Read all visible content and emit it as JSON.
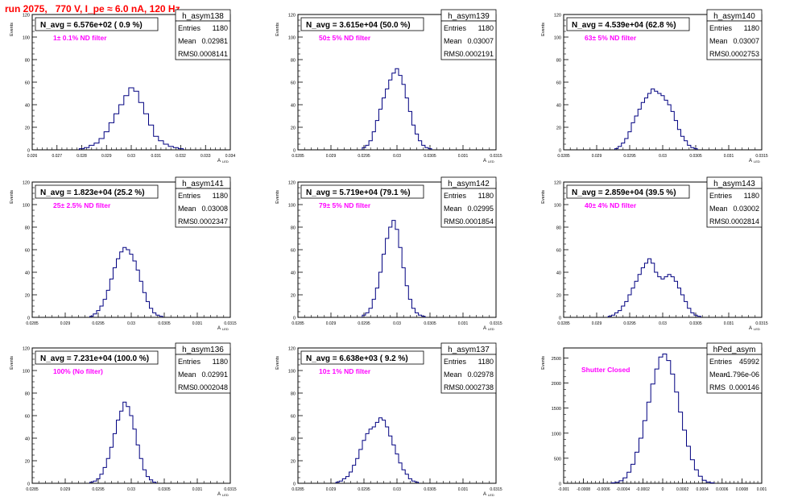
{
  "header": {
    "run_title": "run 2075,   770 V, I_pe ≈ 6.0 nA, 120 Hz"
  },
  "colors": {
    "hist_line": "#000080",
    "annotation": "#ff00ff",
    "title": "#ff0000",
    "axes": "#000000"
  },
  "chart_data": [
    {
      "type": "histogram",
      "name": "h_asym138",
      "navg": "N_avg = 6.576e+02 ( 0.9 %)",
      "filter": "1± 0.1% ND filter",
      "stats": {
        "Entries": "1180",
        "Mean": "0.02981",
        "RMS": "0.0008141"
      },
      "xlim": [
        0.026,
        0.034
      ],
      "ylim": [
        0,
        120
      ],
      "ylabel": "Events",
      "xlabel": "A_LED",
      "xticks": [
        "0.026",
        "0.027",
        "0.028",
        "0.029",
        "0.03",
        "0.031",
        "0.032",
        "0.033",
        "0.034"
      ],
      "yticks": [
        "0",
        "20",
        "40",
        "60",
        "80",
        "100",
        "120"
      ],
      "bins": [
        [
          0.028,
          1
        ],
        [
          0.0282,
          2
        ],
        [
          0.0284,
          4
        ],
        [
          0.0286,
          6
        ],
        [
          0.0288,
          10
        ],
        [
          0.029,
          16
        ],
        [
          0.0292,
          24
        ],
        [
          0.0294,
          32
        ],
        [
          0.0296,
          40
        ],
        [
          0.0298,
          48
        ],
        [
          0.03,
          55
        ],
        [
          0.0302,
          52
        ],
        [
          0.0304,
          42
        ],
        [
          0.0306,
          32
        ],
        [
          0.0308,
          22
        ],
        [
          0.031,
          12
        ],
        [
          0.0312,
          8
        ],
        [
          0.0314,
          5
        ],
        [
          0.0316,
          3
        ],
        [
          0.0318,
          2
        ],
        [
          0.032,
          1
        ]
      ]
    },
    {
      "type": "histogram",
      "name": "h_asym139",
      "navg": "N_avg = 3.615e+04 (50.0 %)",
      "filter": "50± 5% ND filter",
      "stats": {
        "Entries": "1180",
        "Mean": "0.03007",
        "RMS": "0.0002191"
      },
      "xlim": [
        0.0285,
        0.0315
      ],
      "ylim": [
        0,
        120
      ],
      "ylabel": "Events",
      "xlabel": "A_LED",
      "xticks": [
        "0.0285",
        "0.029",
        "0.0295",
        "0.03",
        "0.0305",
        "0.031",
        "0.0315"
      ],
      "yticks": [
        "0",
        "20",
        "40",
        "60",
        "80",
        "100",
        "120"
      ],
      "bins": [
        [
          0.0295,
          2
        ],
        [
          0.02955,
          4
        ],
        [
          0.0296,
          8
        ],
        [
          0.02965,
          16
        ],
        [
          0.0297,
          26
        ],
        [
          0.02975,
          36
        ],
        [
          0.0298,
          46
        ],
        [
          0.02985,
          54
        ],
        [
          0.0299,
          62
        ],
        [
          0.02995,
          68
        ],
        [
          0.03,
          72
        ],
        [
          0.03005,
          66
        ],
        [
          0.0301,
          58
        ],
        [
          0.03015,
          46
        ],
        [
          0.0302,
          34
        ],
        [
          0.03025,
          22
        ],
        [
          0.0303,
          14
        ],
        [
          0.03035,
          8
        ],
        [
          0.0304,
          4
        ],
        [
          0.03045,
          2
        ],
        [
          0.0305,
          1
        ]
      ]
    },
    {
      "type": "histogram",
      "name": "h_asym140",
      "navg": "N_avg = 4.539e+04 (62.8 %)",
      "filter": "63± 5% ND filter",
      "stats": {
        "Entries": "1180",
        "Mean": "0.03007",
        "RMS": "0.0002753"
      },
      "xlim": [
        0.0285,
        0.0315
      ],
      "ylim": [
        0,
        120
      ],
      "ylabel": "Events",
      "xlabel": "A_LED",
      "xticks": [
        "0.0285",
        "0.029",
        "0.0295",
        "0.03",
        "0.0305",
        "0.031",
        "0.0315"
      ],
      "yticks": [
        "0",
        "20",
        "40",
        "60",
        "80",
        "100",
        "120"
      ],
      "bins": [
        [
          0.0293,
          1
        ],
        [
          0.02935,
          3
        ],
        [
          0.0294,
          6
        ],
        [
          0.02945,
          10
        ],
        [
          0.0295,
          16
        ],
        [
          0.02955,
          24
        ],
        [
          0.0296,
          30
        ],
        [
          0.02965,
          36
        ],
        [
          0.0297,
          42
        ],
        [
          0.02975,
          46
        ],
        [
          0.0298,
          50
        ],
        [
          0.02985,
          54
        ],
        [
          0.0299,
          52
        ],
        [
          0.02995,
          50
        ],
        [
          0.03,
          48
        ],
        [
          0.03005,
          44
        ],
        [
          0.0301,
          40
        ],
        [
          0.03015,
          34
        ],
        [
          0.0302,
          26
        ],
        [
          0.03025,
          18
        ],
        [
          0.0303,
          12
        ],
        [
          0.03035,
          8
        ],
        [
          0.0304,
          4
        ],
        [
          0.03045,
          2
        ],
        [
          0.0305,
          1
        ]
      ]
    },
    {
      "type": "histogram",
      "name": "h_asym141",
      "navg": "N_avg = 1.823e+04 (25.2 %)",
      "filter": "25± 2.5% ND filter",
      "stats": {
        "Entries": "1180",
        "Mean": "0.03008",
        "RMS": "0.0002347"
      },
      "xlim": [
        0.0285,
        0.0315
      ],
      "ylim": [
        0,
        120
      ],
      "ylabel": "Events",
      "xlabel": "A_LED",
      "xticks": [
        "0.0285",
        "0.029",
        "0.0295",
        "0.03",
        "0.0305",
        "0.031",
        "0.0315"
      ],
      "yticks": [
        "0",
        "20",
        "40",
        "60",
        "80",
        "100",
        "120"
      ],
      "bins": [
        [
          0.0294,
          1
        ],
        [
          0.02945,
          3
        ],
        [
          0.0295,
          6
        ],
        [
          0.02955,
          10
        ],
        [
          0.0296,
          16
        ],
        [
          0.02965,
          24
        ],
        [
          0.0297,
          34
        ],
        [
          0.02975,
          44
        ],
        [
          0.0298,
          52
        ],
        [
          0.02985,
          58
        ],
        [
          0.0299,
          62
        ],
        [
          0.02995,
          60
        ],
        [
          0.03,
          56
        ],
        [
          0.03005,
          50
        ],
        [
          0.0301,
          42
        ],
        [
          0.03015,
          32
        ],
        [
          0.0302,
          22
        ],
        [
          0.03025,
          14
        ],
        [
          0.0303,
          8
        ],
        [
          0.03035,
          4
        ],
        [
          0.0304,
          2
        ],
        [
          0.03045,
          1
        ]
      ]
    },
    {
      "type": "histogram",
      "name": "h_asym142",
      "navg": "N_avg = 5.719e+04 (79.1 %)",
      "filter": "79± 5% ND filter",
      "stats": {
        "Entries": "1180",
        "Mean": "0.02995",
        "RMS": "0.0001854"
      },
      "xlim": [
        0.0285,
        0.0315
      ],
      "ylim": [
        0,
        120
      ],
      "ylabel": "Events",
      "xlabel": "A_LED",
      "xticks": [
        "0.0285",
        "0.029",
        "0.0295",
        "0.03",
        "0.0305",
        "0.031",
        "0.0315"
      ],
      "yticks": [
        "0",
        "20",
        "40",
        "60",
        "80",
        "100",
        "120"
      ],
      "bins": [
        [
          0.0295,
          2
        ],
        [
          0.02955,
          4
        ],
        [
          0.0296,
          8
        ],
        [
          0.02965,
          16
        ],
        [
          0.0297,
          26
        ],
        [
          0.02975,
          40
        ],
        [
          0.0298,
          56
        ],
        [
          0.02985,
          70
        ],
        [
          0.0299,
          80
        ],
        [
          0.02995,
          86
        ],
        [
          0.03,
          78
        ],
        [
          0.03005,
          62
        ],
        [
          0.0301,
          44
        ],
        [
          0.03015,
          28
        ],
        [
          0.0302,
          16
        ],
        [
          0.03025,
          8
        ],
        [
          0.0303,
          4
        ],
        [
          0.03035,
          2
        ],
        [
          0.0304,
          1
        ]
      ]
    },
    {
      "type": "histogram",
      "name": "h_asym143",
      "navg": "N_avg = 2.859e+04 (39.5 %)",
      "filter": "40± 4% ND filter",
      "stats": {
        "Entries": "1180",
        "Mean": "0.03002",
        "RMS": "0.0002814"
      },
      "xlim": [
        0.0285,
        0.0315
      ],
      "ylim": [
        0,
        120
      ],
      "ylabel": "Events",
      "xlabel": "A_LED",
      "xticks": [
        "0.0285",
        "0.029",
        "0.0295",
        "0.03",
        "0.0305",
        "0.031",
        "0.0315"
      ],
      "yticks": [
        "0",
        "20",
        "40",
        "60",
        "80",
        "100",
        "120"
      ],
      "bins": [
        [
          0.0292,
          1
        ],
        [
          0.02925,
          2
        ],
        [
          0.0293,
          4
        ],
        [
          0.02935,
          6
        ],
        [
          0.0294,
          10
        ],
        [
          0.02945,
          14
        ],
        [
          0.0295,
          20
        ],
        [
          0.02955,
          26
        ],
        [
          0.0296,
          32
        ],
        [
          0.02965,
          38
        ],
        [
          0.0297,
          44
        ],
        [
          0.02975,
          48
        ],
        [
          0.0298,
          52
        ],
        [
          0.02985,
          48
        ],
        [
          0.0299,
          40
        ],
        [
          0.02995,
          36
        ],
        [
          0.03,
          34
        ],
        [
          0.03005,
          36
        ],
        [
          0.0301,
          38
        ],
        [
          0.03015,
          36
        ],
        [
          0.0302,
          32
        ],
        [
          0.03025,
          26
        ],
        [
          0.0303,
          20
        ],
        [
          0.03035,
          14
        ],
        [
          0.0304,
          8
        ],
        [
          0.03045,
          4
        ],
        [
          0.0305,
          2
        ],
        [
          0.03055,
          1
        ]
      ]
    },
    {
      "type": "histogram",
      "name": "h_asym136",
      "navg": "N_avg = 7.231e+04 (100.0 %)",
      "filter": "100% (No filter)",
      "stats": {
        "Entries": "1180",
        "Mean": "0.02991",
        "RMS": "0.0002048"
      },
      "xlim": [
        0.0285,
        0.0315
      ],
      "ylim": [
        0,
        120
      ],
      "ylabel": "Events",
      "xlabel": "A_LED",
      "xticks": [
        "0.0285",
        "0.029",
        "0.0295",
        "0.03",
        "0.0305",
        "0.031",
        "0.0315"
      ],
      "yticks": [
        "0",
        "20",
        "40",
        "60",
        "80",
        "100",
        "120"
      ],
      "bins": [
        [
          0.0294,
          1
        ],
        [
          0.02945,
          2
        ],
        [
          0.0295,
          4
        ],
        [
          0.02955,
          8
        ],
        [
          0.0296,
          14
        ],
        [
          0.02965,
          22
        ],
        [
          0.0297,
          32
        ],
        [
          0.02975,
          44
        ],
        [
          0.0298,
          56
        ],
        [
          0.02985,
          64
        ],
        [
          0.0299,
          72
        ],
        [
          0.02995,
          68
        ],
        [
          0.03,
          60
        ],
        [
          0.03005,
          48
        ],
        [
          0.0301,
          34
        ],
        [
          0.03015,
          22
        ],
        [
          0.0302,
          12
        ],
        [
          0.03025,
          6
        ],
        [
          0.0303,
          3
        ],
        [
          0.03035,
          1
        ]
      ]
    },
    {
      "type": "histogram",
      "name": "h_asym137",
      "navg": "N_avg = 6.638e+03 ( 9.2 %)",
      "filter": "10± 1% ND filter",
      "stats": {
        "Entries": "1180",
        "Mean": "0.02978",
        "RMS": "0.0002738"
      },
      "xlim": [
        0.0285,
        0.0315
      ],
      "ylim": [
        0,
        120
      ],
      "ylabel": "Events",
      "xlabel": "A_LED",
      "xticks": [
        "0.0285",
        "0.029",
        "0.0295",
        "0.03",
        "0.0305",
        "0.031",
        "0.0315"
      ],
      "yticks": [
        "0",
        "20",
        "40",
        "60",
        "80",
        "100",
        "120"
      ],
      "bins": [
        [
          0.0291,
          1
        ],
        [
          0.02915,
          2
        ],
        [
          0.0292,
          4
        ],
        [
          0.02925,
          6
        ],
        [
          0.0293,
          10
        ],
        [
          0.02935,
          16
        ],
        [
          0.0294,
          22
        ],
        [
          0.02945,
          30
        ],
        [
          0.0295,
          38
        ],
        [
          0.02955,
          44
        ],
        [
          0.0296,
          48
        ],
        [
          0.02965,
          50
        ],
        [
          0.0297,
          54
        ],
        [
          0.02975,
          58
        ],
        [
          0.0298,
          56
        ],
        [
          0.02985,
          50
        ],
        [
          0.0299,
          42
        ],
        [
          0.02995,
          34
        ],
        [
          0.03,
          26
        ],
        [
          0.03005,
          18
        ],
        [
          0.0301,
          12
        ],
        [
          0.03015,
          8
        ],
        [
          0.0302,
          4
        ],
        [
          0.03025,
          2
        ],
        [
          0.0303,
          1
        ]
      ]
    },
    {
      "type": "histogram",
      "name": "hPed_asym",
      "navg": "",
      "filter": "Shutter Closed",
      "stats": {
        "Entries": "45992",
        "Mean": "-1.796e-06",
        "RMS": "0.000146"
      },
      "xlim": [
        -0.001,
        0.001
      ],
      "ylim": [
        0,
        2700
      ],
      "ylabel": "Events",
      "xlabel": "",
      "xticks": [
        "-0.001",
        "-0.0008",
        "-0.0006",
        "-0.0004",
        "-0.0002",
        "0",
        "0.0002",
        "0.0004",
        "0.0006",
        "0.0008",
        "0.001"
      ],
      "yticks": [
        "0",
        "500",
        "1000",
        "1500",
        "2000",
        "2500"
      ],
      "bins": [
        [
          -0.0005,
          8
        ],
        [
          -0.00046,
          20
        ],
        [
          -0.00042,
          50
        ],
        [
          -0.00038,
          110
        ],
        [
          -0.00034,
          220
        ],
        [
          -0.0003,
          380
        ],
        [
          -0.00026,
          620
        ],
        [
          -0.00022,
          900
        ],
        [
          -0.00018,
          1250
        ],
        [
          -0.00014,
          1620
        ],
        [
          -0.0001,
          1980
        ],
        [
          -6e-05,
          2280
        ],
        [
          -2e-05,
          2520
        ],
        [
          2e-05,
          2580
        ],
        [
          6e-05,
          2450
        ],
        [
          0.0001,
          2180
        ],
        [
          0.00014,
          1820
        ],
        [
          0.00018,
          1420
        ],
        [
          0.00022,
          1060
        ],
        [
          0.00026,
          740
        ],
        [
          0.0003,
          470
        ],
        [
          0.00034,
          270
        ],
        [
          0.00038,
          140
        ],
        [
          0.00042,
          60
        ],
        [
          0.00046,
          24
        ],
        [
          0.0005,
          8
        ]
      ]
    }
  ]
}
